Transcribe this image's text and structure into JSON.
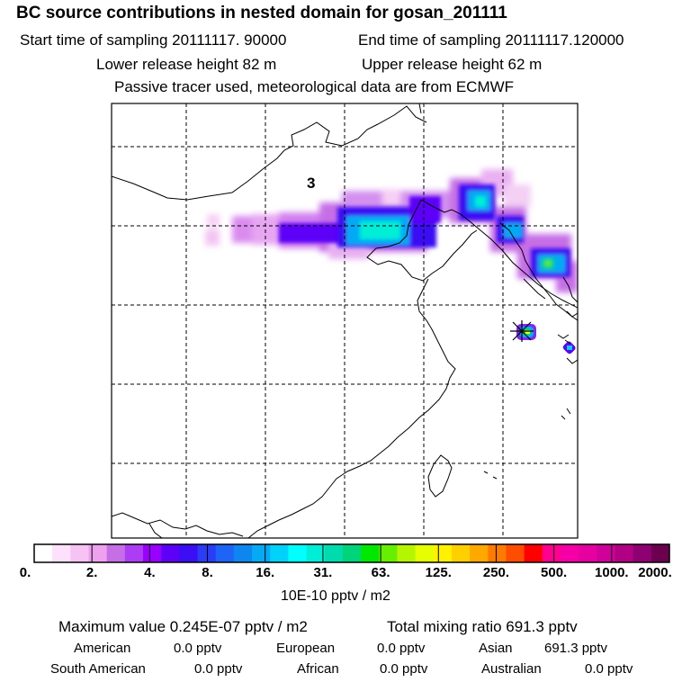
{
  "header": {
    "title": "BC  source contributions in nested domain for gosan_201111",
    "start_label": "Start time of sampling 20111117. 90000",
    "end_label": "End time of sampling 20111117.120000",
    "lower_label": "Lower release height   82 m",
    "upper_label": "Upper release height   62 m",
    "tracer_label": "Passive tracer used, meteorological data are from ECMWF"
  },
  "map": {
    "region_label": "3",
    "receptor_marker": "receptor-star-icon"
  },
  "chart_data": {
    "type": "heatmap",
    "title": "BC  source contributions in nested domain for gosan_201111",
    "colorbar": {
      "tick_labels": [
        "0.",
        "2.",
        "4.",
        "8.",
        "16.",
        "31.",
        "63.",
        "125.",
        "250.",
        "500.",
        "1000.",
        "2000."
      ],
      "unit": "10E-10 pptv / m2",
      "colors": [
        "#ffffff",
        "#fde0fb",
        "#f6c3f4",
        "#eda1ef",
        "#c66ee6",
        "#ad3df4",
        "#9a00ff",
        "#5c00f8",
        "#3b0ef4",
        "#2a3cf6",
        "#1e64f7",
        "#0e86f0",
        "#06aaf4",
        "#00d2fa",
        "#00ffff",
        "#00eed6",
        "#00dbad",
        "#00d47a",
        "#00e800",
        "#66ef00",
        "#b6f500",
        "#e6ff00",
        "#fff200",
        "#ffd000",
        "#ffa800",
        "#ff7a00",
        "#ff4d00",
        "#ff0000",
        "#ff0090",
        "#f500a6",
        "#e600a2",
        "#d0009a",
        "#b20085",
        "#8f0073",
        "#6c004f"
      ]
    },
    "max_value": "0.245E-07 pptv / m2",
    "total_mixing_ratio": "691.3 pptv"
  },
  "footer": {
    "max_label": "Maximum value  0.245E-07 pptv / m2",
    "total_label": "Total mixing ratio      691.3 pptv",
    "rows": [
      [
        {
          "name": "American",
          "value": "0.0 pptv"
        },
        {
          "name": "European",
          "value": "0.0 pptv"
        },
        {
          "name": "Asian",
          "value": "691.3 pptv"
        }
      ],
      [
        {
          "name": "South American",
          "value": "0.0 pptv"
        },
        {
          "name": "African",
          "value": "0.0 pptv"
        },
        {
          "name": "Australian",
          "value": "0.0 pptv"
        }
      ]
    ]
  }
}
